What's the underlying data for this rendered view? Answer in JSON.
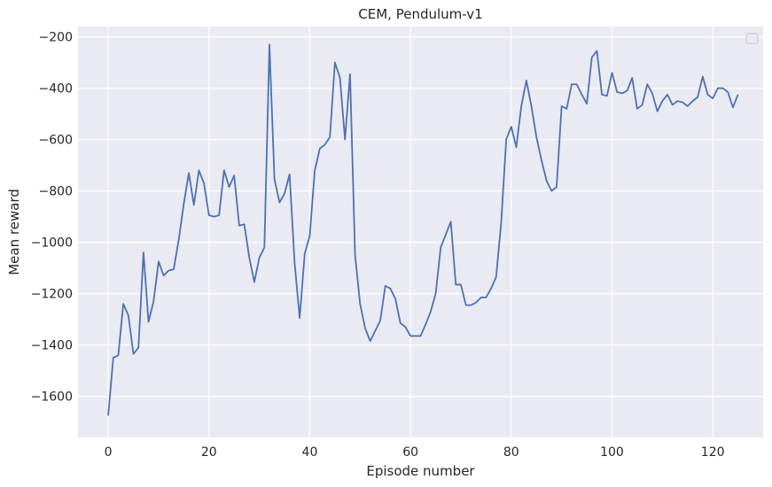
{
  "chart_data": {
    "type": "line",
    "title": "CEM, Pendulum-v1",
    "xlabel": "Episode number",
    "ylabel": "Mean reward",
    "xlim": [
      -6,
      130
    ],
    "ylim": [
      -1760,
      -160
    ],
    "xticks": [
      0,
      20,
      40,
      60,
      80,
      100,
      120
    ],
    "xtick_labels": [
      "0",
      "20",
      "40",
      "60",
      "80",
      "100",
      "120"
    ],
    "yticks": [
      -1600,
      -1400,
      -1200,
      -1000,
      -800,
      -600,
      -400,
      -200
    ],
    "ytick_labels": [
      "−1600",
      "−1400",
      "−1200",
      "−1000",
      "−800",
      "−600",
      "−400",
      "−200"
    ],
    "grid": true,
    "legend": "top-right (empty)",
    "colors": {
      "background": "#eaeaf2",
      "line": "#4c72b0",
      "grid": "#ffffff"
    },
    "series": [
      {
        "values": [
          -1675,
          -1450,
          -1440,
          -1240,
          -1285,
          -1435,
          -1410,
          -1040,
          -1310,
          -1230,
          -1075,
          -1130,
          -1110,
          -1105,
          -990,
          -850,
          -730,
          -855,
          -720,
          -770,
          -895,
          -900,
          -895,
          -720,
          -785,
          -740,
          -935,
          -930,
          -1060,
          -1155,
          -1060,
          -1020,
          -230,
          -755,
          -845,
          -810,
          -735,
          -1080,
          -1295,
          -1045,
          -975,
          -720,
          -635,
          -620,
          -590,
          -300,
          -360,
          -600,
          -345,
          -1050,
          -1240,
          -1335,
          -1385,
          -1345,
          -1305,
          -1170,
          -1180,
          -1220,
          -1315,
          -1330,
          -1365,
          -1365,
          -1365,
          -1320,
          -1270,
          -1200,
          -1020,
          -970,
          -920,
          -1165,
          -1165,
          -1245,
          -1245,
          -1235,
          -1215,
          -1215,
          -1180,
          -1135,
          -925,
          -600,
          -550,
          -630,
          -470,
          -370,
          -470,
          -590,
          -680,
          -760,
          -800,
          -785,
          -470,
          -480,
          -385,
          -385,
          -425,
          -460,
          -280,
          -255,
          -425,
          -430,
          -340,
          -415,
          -420,
          -410,
          -360,
          -480,
          -465,
          -385,
          -420,
          -490,
          -450,
          -425,
          -465,
          -450,
          -455,
          -470,
          -450,
          -435,
          -355,
          -425,
          -440,
          -400,
          -400,
          -415,
          -475,
          -425
        ]
      }
    ]
  }
}
